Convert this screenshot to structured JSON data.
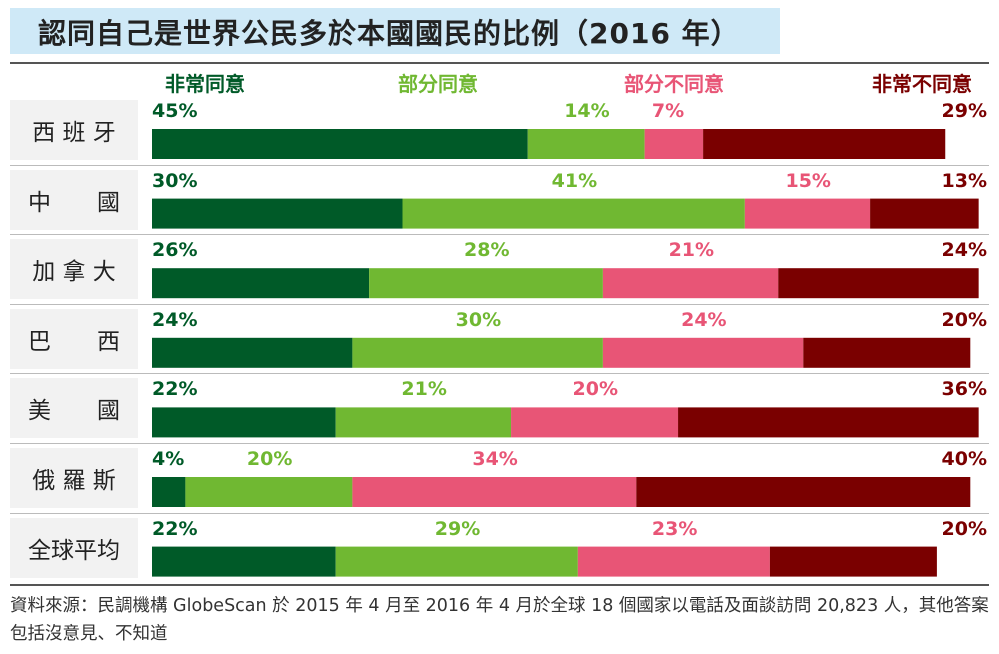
{
  "chart_data": {
    "type": "bar",
    "orientation": "horizontal",
    "stacked": true,
    "title": "認同自己是世界公民多於本國國民的比例（2016 年）",
    "categories": [
      "西 班 牙",
      "中　　國",
      "加 拿 大",
      "巴　　西",
      "美　　國",
      "俄 羅 斯",
      "全球平均"
    ],
    "series": [
      {
        "name": "非常同意",
        "color": "#005a28",
        "values": [
          45,
          30,
          26,
          24,
          22,
          4,
          22
        ]
      },
      {
        "name": "部分同意",
        "color": "#70b832",
        "values": [
          14,
          41,
          28,
          30,
          21,
          20,
          29
        ]
      },
      {
        "name": "部分不同意",
        "color": "#e85576",
        "values": [
          7,
          15,
          21,
          24,
          20,
          34,
          23
        ]
      },
      {
        "name": "非常不同意",
        "color": "#7a0000",
        "values": [
          29,
          13,
          24,
          20,
          36,
          40,
          20
        ]
      }
    ],
    "value_suffix": "%",
    "legend": "top",
    "grid": false
  },
  "footnote": "資料來源：民調機構 GlobeScan 於 2015 年 4 月至 2016 年 4 月於全球 18 個國家以電話及面談訪問 20,823 人，其他答案包括沒意見、不知道"
}
